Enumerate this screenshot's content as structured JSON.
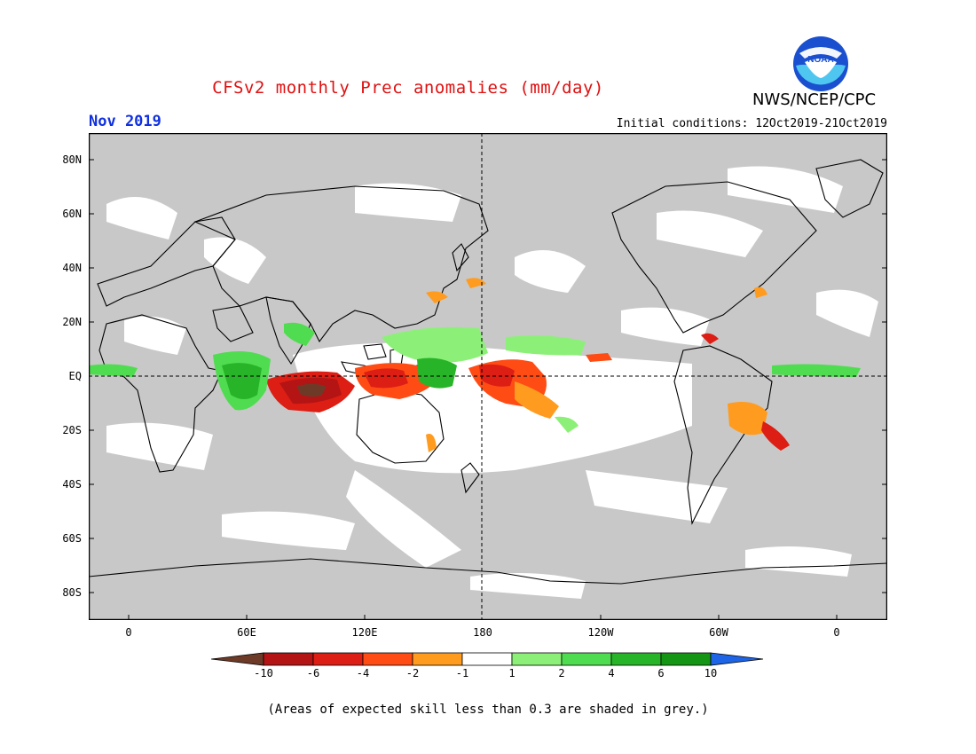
{
  "header": {
    "title": "CFSv2 monthly Prec anomalies (mm/day)",
    "month": "Nov 2019",
    "initial_conditions": "Initial conditions: 12Oct2019-21Oct2019",
    "agency": "NWS/NCEP/CPC",
    "logo_text": "NOAA",
    "title_color": "#e01010",
    "month_color": "#1030e0"
  },
  "map": {
    "lat_labels": [
      "80N",
      "60N",
      "40N",
      "20N",
      "EQ",
      "20S",
      "40S",
      "60S",
      "80S"
    ],
    "lon_labels": [
      "0",
      "60E",
      "120E",
      "180",
      "120W",
      "60W",
      "0"
    ],
    "background_color": "#c8c8c8",
    "projection": "cylindrical-equidistant"
  },
  "colorbar": {
    "labels": [
      "-10",
      "-6",
      "-4",
      "-2",
      "-1",
      "1",
      "2",
      "4",
      "6",
      "10"
    ],
    "colors": [
      "#6e3a28",
      "#b41414",
      "#dc1e14",
      "#ff4b14",
      "#ff9b1e",
      "#ffffff",
      "#8cf078",
      "#50dc50",
      "#28b428",
      "#149614",
      "#1e64e6"
    ]
  },
  "footnote": "(Areas of expected skill less than 0.3 are shaded in grey.)"
}
